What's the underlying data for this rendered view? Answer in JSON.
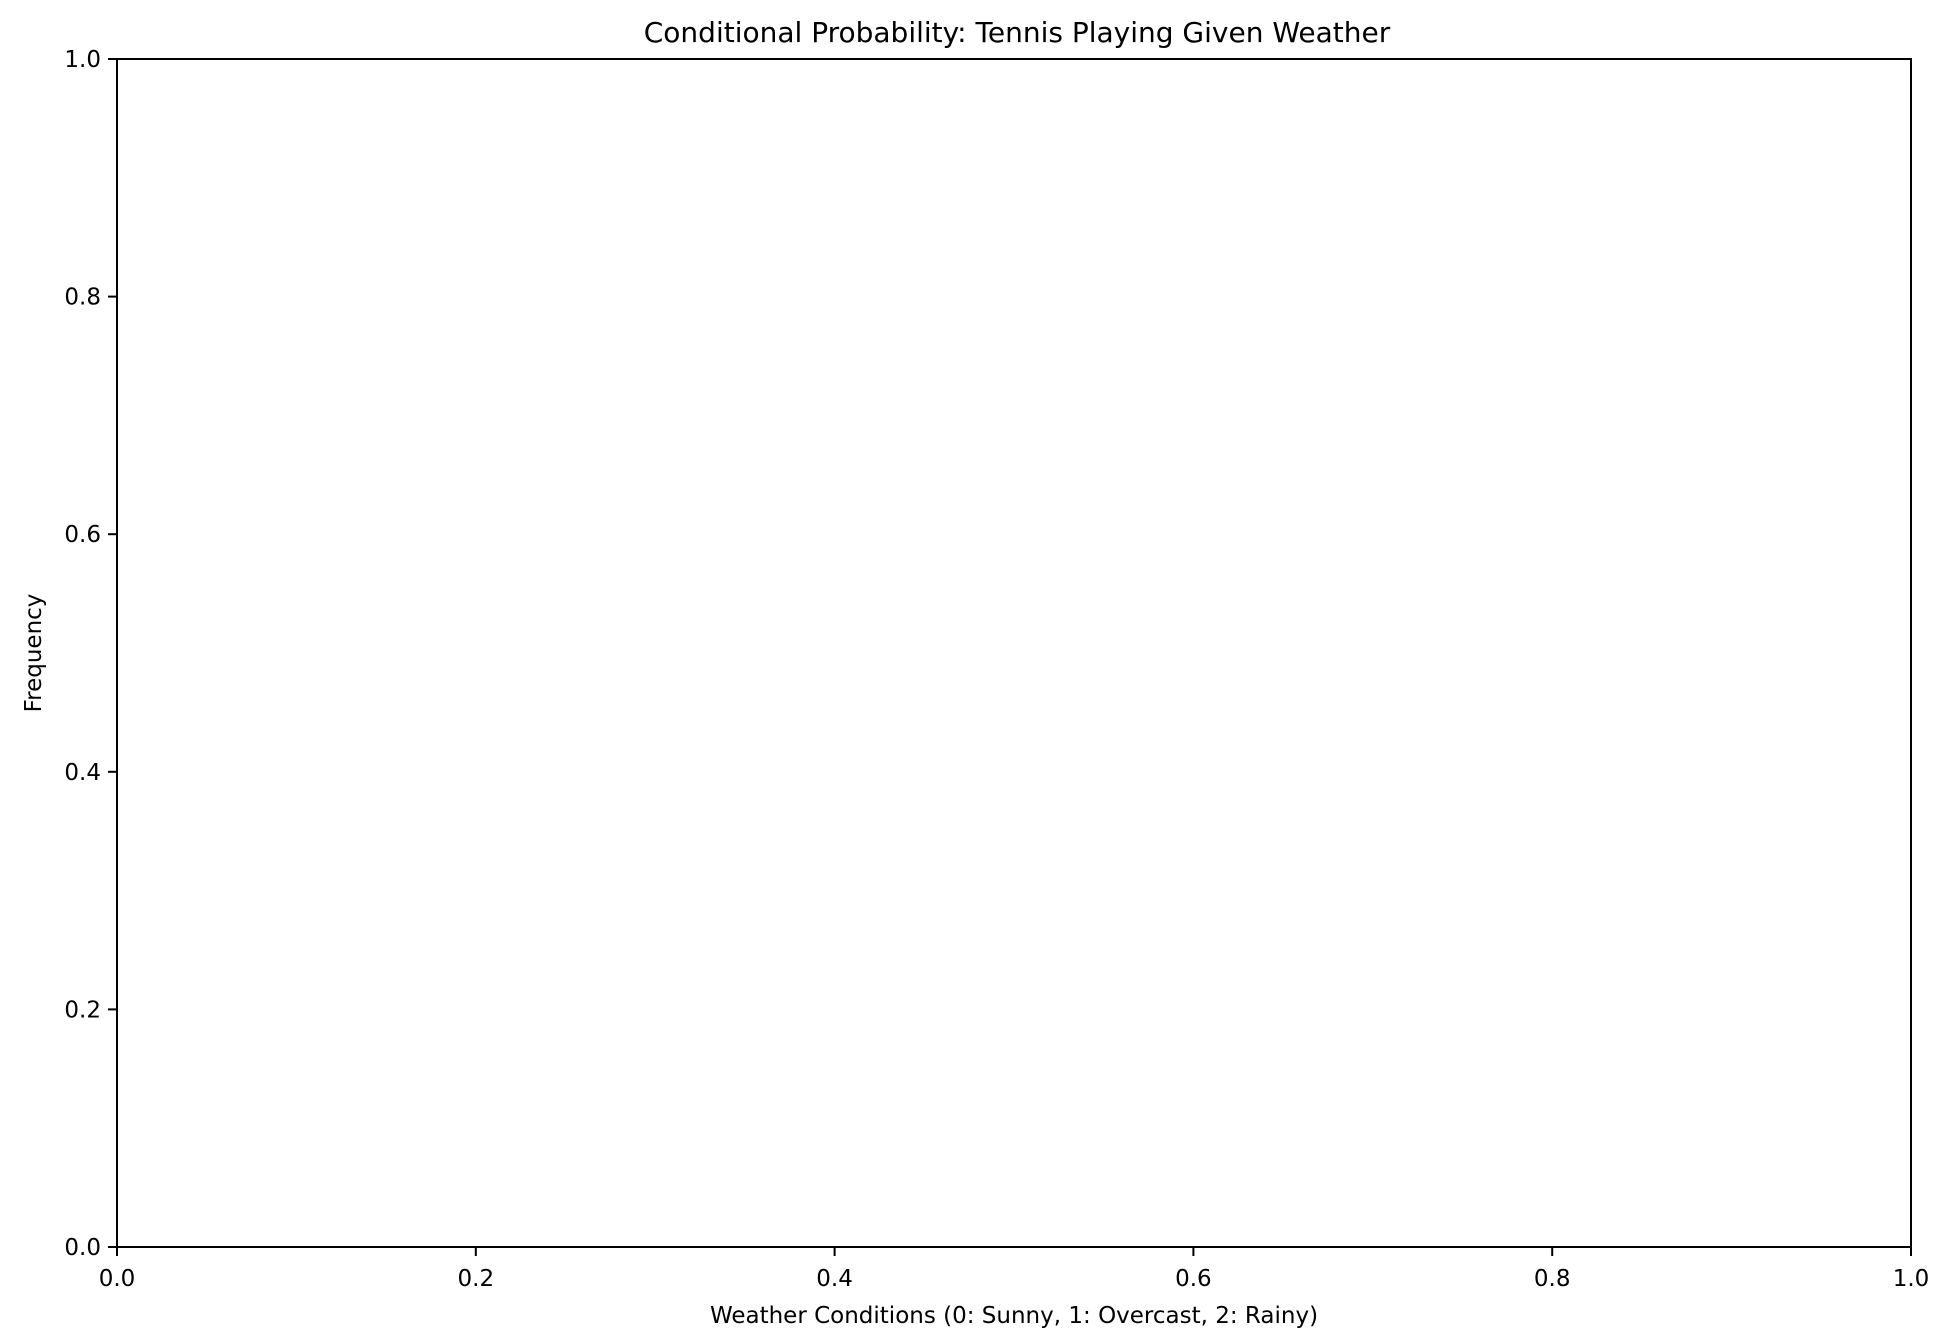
{
  "chart_data": {
    "type": "bar",
    "title": "Conditional Probability: Tennis Playing Given Weather",
    "xlabel": "Weather Conditions (0: Sunny, 1: Overcast, 2: Rainy)",
    "ylabel": "Frequency",
    "xlim": [
      0.0,
      1.0
    ],
    "ylim": [
      0.0,
      1.0
    ],
    "xticks": [
      "0.0",
      "0.2",
      "0.4",
      "0.6",
      "0.8",
      "1.0"
    ],
    "yticks": [
      "0.0",
      "0.2",
      "0.4",
      "0.6",
      "0.8",
      "1.0"
    ],
    "series": [],
    "grid": false
  }
}
